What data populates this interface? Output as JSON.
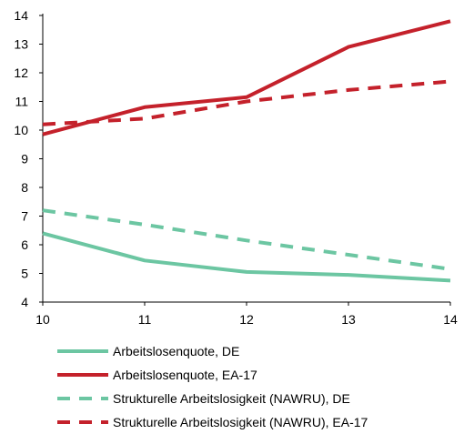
{
  "chart_data": {
    "type": "line",
    "x": [
      10,
      11,
      12,
      13,
      14
    ],
    "xlim": [
      10,
      14
    ],
    "ylim": [
      4,
      14
    ],
    "x_ticks": [
      "10",
      "11",
      "12",
      "13",
      "14"
    ],
    "y_ticks": [
      "4",
      "5",
      "6",
      "7",
      "8",
      "9",
      "10",
      "11",
      "12",
      "13",
      "14"
    ],
    "grid": false,
    "legend_position": "bottom",
    "series": [
      {
        "name": "Arbeitslosenquote, DE",
        "color": "#6cc6a2",
        "style": "solid",
        "values": [
          6.4,
          5.45,
          5.05,
          4.95,
          4.75
        ]
      },
      {
        "name": "Arbeitslosenquote, EA-17",
        "color": "#c4212b",
        "style": "solid",
        "values": [
          9.85,
          10.8,
          11.15,
          12.9,
          13.8
        ]
      },
      {
        "name": "Strukturelle Arbeitslosigkeit (NAWRU), DE",
        "color": "#6cc6a2",
        "style": "dashed",
        "values": [
          7.2,
          6.7,
          6.15,
          5.65,
          5.15
        ]
      },
      {
        "name": "Strukturelle Arbeitslosigkeit (NAWRU), EA-17",
        "color": "#c4212b",
        "style": "dashed",
        "values": [
          10.2,
          10.4,
          11.0,
          11.4,
          11.7
        ]
      }
    ]
  }
}
